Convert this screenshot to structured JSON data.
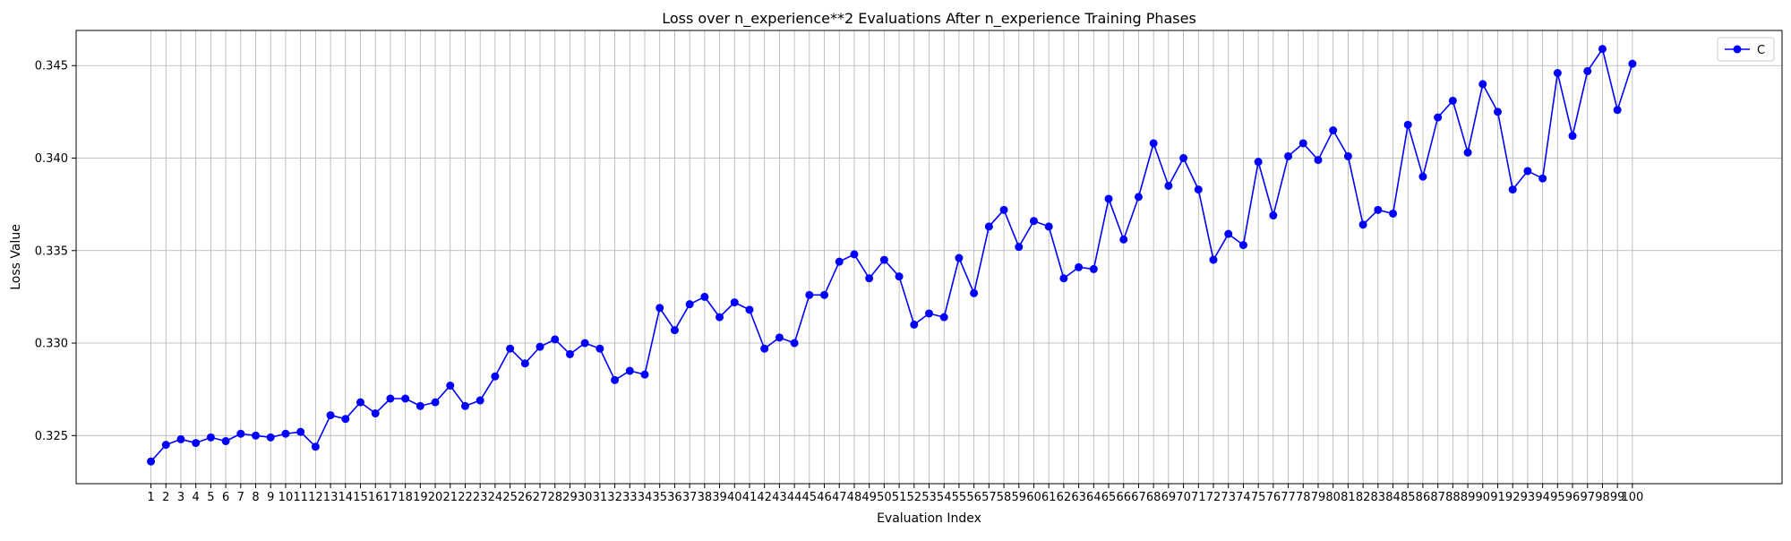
{
  "chart_data": {
    "type": "line",
    "title": "Loss over n_experience**2 Evaluations After n_experience Training Phases",
    "xlabel": "Evaluation Index",
    "ylabel": "Loss Value",
    "grid": true,
    "legend_position": "top-right",
    "ylim": [
      0.3224,
      0.3469
    ],
    "xlim": [
      -4,
      110
    ],
    "x_ticks": [
      1,
      2,
      3,
      4,
      5,
      6,
      7,
      8,
      9,
      10,
      11,
      12,
      13,
      14,
      15,
      16,
      17,
      18,
      19,
      20,
      21,
      22,
      23,
      24,
      25,
      26,
      27,
      28,
      29,
      30,
      31,
      32,
      33,
      34,
      35,
      36,
      37,
      38,
      39,
      40,
      41,
      42,
      43,
      44,
      45,
      46,
      47,
      48,
      49,
      50,
      51,
      52,
      53,
      54,
      55,
      56,
      57,
      58,
      59,
      60,
      61,
      62,
      63,
      64,
      65,
      66,
      67,
      68,
      69,
      70,
      71,
      72,
      73,
      74,
      75,
      76,
      77,
      78,
      79,
      80,
      81,
      82,
      83,
      84,
      85,
      86,
      87,
      88,
      89,
      90,
      91,
      92,
      93,
      94,
      95,
      96,
      97,
      98,
      99,
      100
    ],
    "y_ticks": [
      {
        "value": 0.325,
        "label": "0.325"
      },
      {
        "value": 0.33,
        "label": "0.330"
      },
      {
        "value": 0.335,
        "label": "0.335"
      },
      {
        "value": 0.34,
        "label": "0.340"
      },
      {
        "value": 0.345,
        "label": "0.345"
      }
    ],
    "series": [
      {
        "name": "C",
        "color": "#0000ff",
        "marker": "circle",
        "x": [
          1,
          2,
          3,
          4,
          5,
          6,
          7,
          8,
          9,
          10,
          11,
          12,
          13,
          14,
          15,
          16,
          17,
          18,
          19,
          20,
          21,
          22,
          23,
          24,
          25,
          26,
          27,
          28,
          29,
          30,
          31,
          32,
          33,
          34,
          35,
          36,
          37,
          38,
          39,
          40,
          41,
          42,
          43,
          44,
          45,
          46,
          47,
          48,
          49,
          50,
          51,
          52,
          53,
          54,
          55,
          56,
          57,
          58,
          59,
          60,
          61,
          62,
          63,
          64,
          65,
          66,
          67,
          68,
          69,
          70,
          71,
          72,
          73,
          74,
          75,
          76,
          77,
          78,
          79,
          80,
          81,
          82,
          83,
          84,
          85,
          86,
          87,
          88,
          89,
          90,
          91,
          92,
          93,
          94,
          95,
          96,
          97,
          98,
          99,
          100
        ],
        "values": [
          0.3236,
          0.3245,
          0.3248,
          0.3246,
          0.3249,
          0.3247,
          0.3251,
          0.325,
          0.3249,
          0.3251,
          0.3252,
          0.3244,
          0.3261,
          0.3259,
          0.3268,
          0.3262,
          0.327,
          0.327,
          0.3266,
          0.3268,
          0.3277,
          0.3266,
          0.3269,
          0.3282,
          0.3297,
          0.3289,
          0.3298,
          0.3302,
          0.3294,
          0.33,
          0.3297,
          0.328,
          0.3285,
          0.3283,
          0.3319,
          0.3307,
          0.3321,
          0.3325,
          0.3314,
          0.3322,
          0.3318,
          0.3297,
          0.3303,
          0.33,
          0.3326,
          0.3326,
          0.3344,
          0.3348,
          0.3335,
          0.3345,
          0.3336,
          0.331,
          0.3316,
          0.3314,
          0.3346,
          0.3327,
          0.3363,
          0.3372,
          0.3352,
          0.3366,
          0.3363,
          0.3335,
          0.3341,
          0.334,
          0.3378,
          0.3356,
          0.3379,
          0.3408,
          0.3385,
          0.34,
          0.3383,
          0.3345,
          0.3359,
          0.3353,
          0.3398,
          0.3369,
          0.3401,
          0.3408,
          0.3399,
          0.3415,
          0.3401,
          0.3364,
          0.3372,
          0.337,
          0.3418,
          0.339,
          0.3422,
          0.3431,
          0.3403,
          0.344,
          0.3425,
          0.3383,
          0.3393,
          0.3389,
          0.3446,
          0.3412,
          0.3447,
          0.3459,
          0.3426,
          0.3451
        ]
      }
    ]
  }
}
